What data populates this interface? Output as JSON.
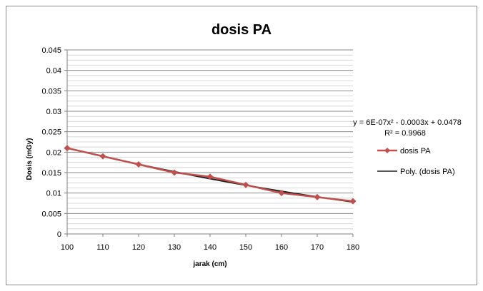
{
  "chart_data": {
    "type": "line",
    "title": "dosis PA",
    "xlabel": "jarak (cm)",
    "ylabel": "Dosis (mGy)",
    "xlim": [
      100,
      180
    ],
    "ylim": [
      0,
      0.045
    ],
    "x_ticks": [
      "100",
      "110",
      "120",
      "130",
      "140",
      "150",
      "160",
      "170",
      "180"
    ],
    "y_ticks": [
      "0",
      "0.005",
      "0.01",
      "0.015",
      "0.02",
      "0.025",
      "0.03",
      "0.035",
      "0.04",
      "0.045"
    ],
    "grid": "horizontal",
    "legend_position": "right",
    "series": [
      {
        "name": "dosis PA",
        "x": [
          100,
          110,
          120,
          130,
          140,
          150,
          160,
          170,
          180
        ],
        "values": [
          0.021,
          0.019,
          0.017,
          0.015,
          0.014,
          0.012,
          0.01,
          0.009,
          0.008
        ],
        "color": "#c0504d",
        "marker": "diamond"
      }
    ],
    "trendline": {
      "name": "Poly. (dosis PA)",
      "type": "polynomial",
      "coefficients": {
        "a": 6e-07,
        "b": -0.0003,
        "c": 0.0478
      },
      "color": "#1f1f1f",
      "equation": "y = 6E-07x² - 0.0003x + 0.0478",
      "r_squared": "R² = 0.9968"
    }
  }
}
